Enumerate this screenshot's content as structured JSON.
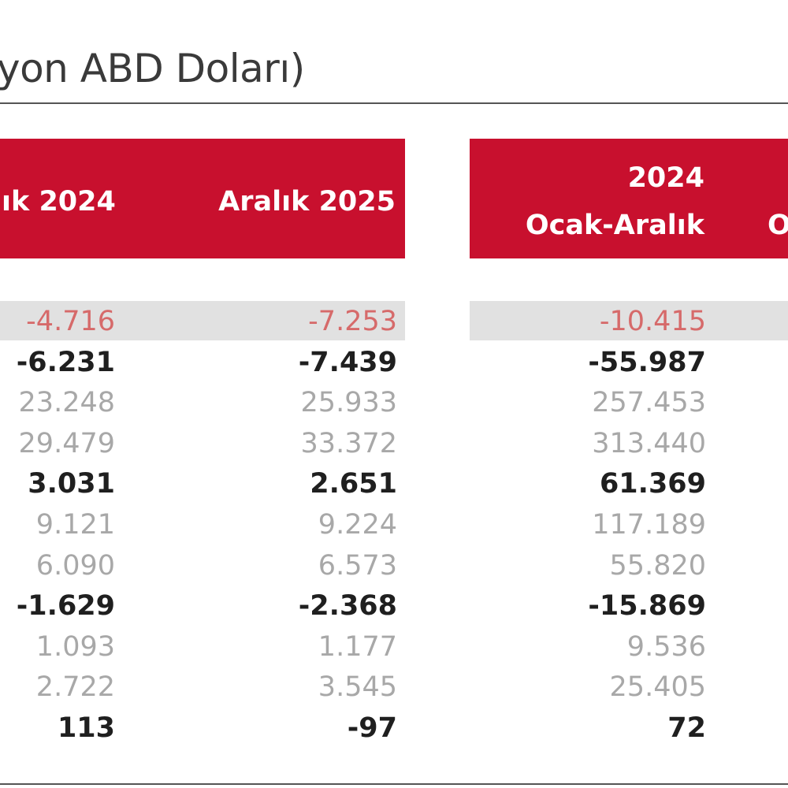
{
  "title": "yon ABD Doları)",
  "header": {
    "col1": "lık 2024",
    "col2": "Aralık 2025",
    "col3_line1": "2024",
    "col3_line2": "Ocak-Aralık",
    "col4_partial": "O"
  },
  "rows": [
    {
      "style": "red",
      "c1": "-4.716",
      "c2": "-7.253",
      "c3": "-10.415"
    },
    {
      "style": "bold",
      "c1": "-6.231",
      "c2": "-7.439",
      "c3": "-55.987"
    },
    {
      "style": "grey",
      "c1": "23.248",
      "c2": "25.933",
      "c3": "257.453"
    },
    {
      "style": "grey",
      "c1": "29.479",
      "c2": "33.372",
      "c3": "313.440"
    },
    {
      "style": "bold",
      "c1": "3.031",
      "c2": "2.651",
      "c3": "61.369"
    },
    {
      "style": "grey",
      "c1": "9.121",
      "c2": "9.224",
      "c3": "117.189"
    },
    {
      "style": "grey",
      "c1": "6.090",
      "c2": "6.573",
      "c3": "55.820"
    },
    {
      "style": "bold",
      "c1": "-1.629",
      "c2": "-2.368",
      "c3": "-15.869"
    },
    {
      "style": "grey",
      "c1": "1.093",
      "c2": "1.177",
      "c3": "9.536"
    },
    {
      "style": "grey",
      "c1": "2.722",
      "c2": "3.545",
      "c3": "25.405"
    },
    {
      "style": "bold",
      "c1": "113",
      "c2": "-97",
      "c3": "72"
    }
  ],
  "colors": {
    "header_red": "#c8102e",
    "highlight_grey": "#e1e1e1",
    "negative_red_text": "#d66a6a"
  }
}
